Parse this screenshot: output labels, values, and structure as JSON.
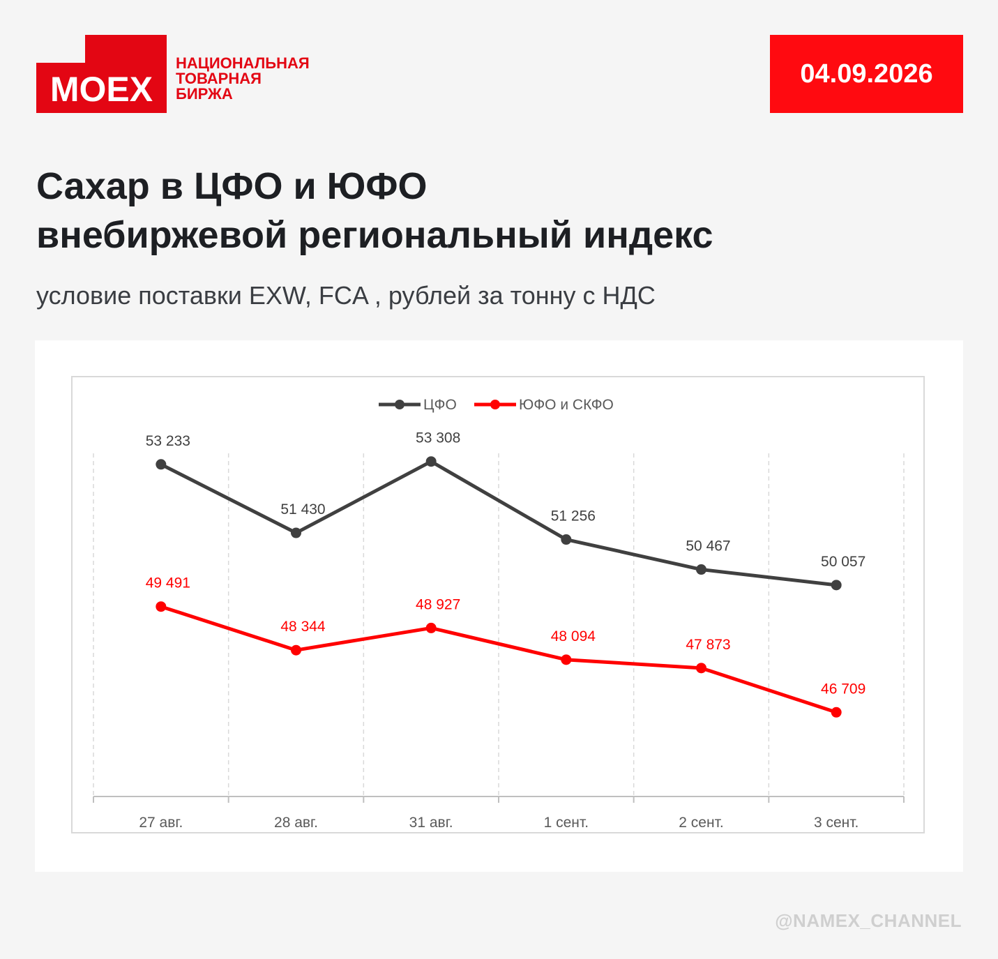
{
  "logo": {
    "word": "MOEX",
    "subtitle_lines": [
      "НАЦИОНАЛЬНАЯ",
      "ТОВАРНАЯ",
      "БИРЖА"
    ],
    "brand_color": "#e30613"
  },
  "date": "04.09.2026",
  "title_lines": [
    "Сахар в ЦФО и ЮФО",
    "внебиржевой региональный индекс"
  ],
  "subtitle": "условие поставки EXW, FCA , рублей за тонну с НДС",
  "footer_handle": "@NAMEX_CHANNEL",
  "chart_data": {
    "type": "line",
    "categories": [
      "27 авг.",
      "28 авг.",
      "31 авг.",
      "1 сент.",
      "2 сент.",
      "3 сент."
    ],
    "series": [
      {
        "name": "ЦФО",
        "color": "#404040",
        "values": [
          53233,
          51430,
          53308,
          51256,
          50467,
          50057
        ],
        "labels": [
          "53 233",
          "51 430",
          "53 308",
          "51 256",
          "50 467",
          "50 057"
        ]
      },
      {
        "name": "ЮФО и СКФО",
        "color": "#ff0000",
        "values": [
          49491,
          48344,
          48927,
          48094,
          47873,
          46709
        ],
        "labels": [
          "49 491",
          "48 344",
          "48 927",
          "48 094",
          "47 873",
          "46 709"
        ]
      }
    ],
    "ylim": [
      44500,
      54000
    ],
    "legend_position": "top",
    "grid": "vertical dashed",
    "data_labels": true
  }
}
